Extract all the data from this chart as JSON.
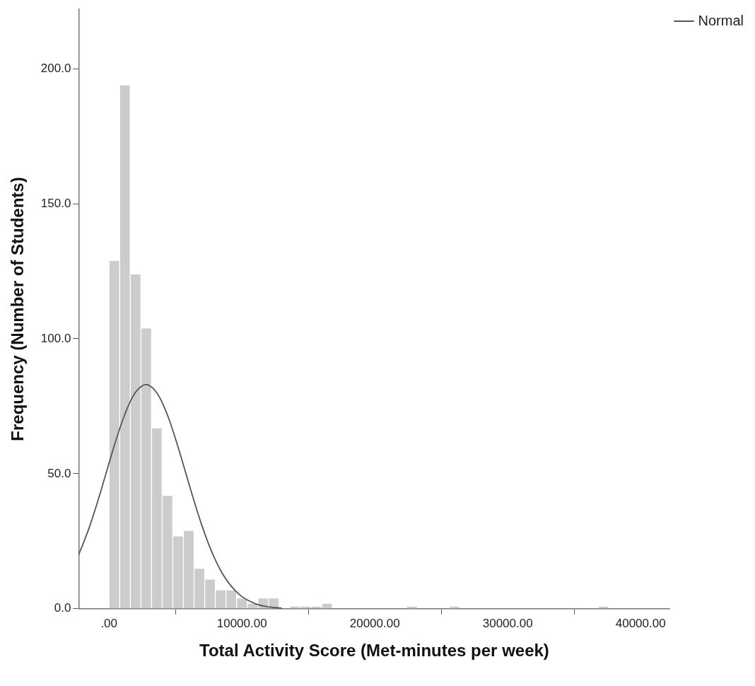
{
  "chart_data": {
    "type": "histogram",
    "xlabel": "Total Activity Score (Met-minutes per week)",
    "ylabel": "Frequency (Number of Students)",
    "bins": [
      0,
      800,
      1600,
      2400,
      3200,
      4000,
      4800,
      5600,
      6400,
      7200,
      8000,
      8800,
      9600,
      10400,
      11200,
      12000,
      12800,
      13600,
      14400,
      15200,
      16000,
      16800,
      17600,
      18400,
      19200,
      20000,
      20800,
      21600,
      22400,
      23200,
      24000,
      24800,
      25600,
      26400,
      27200,
      28000,
      28800,
      29600,
      30400,
      31200,
      32000,
      32800,
      33600,
      34400,
      35200,
      36000,
      36800,
      37600
    ],
    "series": [
      {
        "type": "histogram",
        "color": "#cccccc",
        "values": [
          129,
          194,
          124,
          104,
          67,
          42,
          27,
          29,
          15,
          11,
          7,
          7,
          4,
          2,
          4,
          4,
          0,
          1,
          1,
          1,
          2,
          0,
          0,
          0,
          0,
          0,
          0,
          0,
          1,
          0,
          0,
          0,
          1,
          0,
          0,
          0,
          0,
          0,
          0,
          0,
          0,
          0,
          0,
          0,
          0,
          0,
          1
        ]
      },
      {
        "type": "line",
        "name": "Normal",
        "color": "#555555",
        "x": [
          -2280,
          -1500,
          -1000,
          -500,
          0,
          500,
          1000,
          1500,
          2000,
          2500,
          2780,
          3000,
          3500,
          4000,
          4500,
          5000,
          5500,
          6000,
          6500,
          7000,
          7500,
          8000,
          8500,
          9000,
          9500,
          10000,
          11000,
          12000,
          13000
        ],
        "values": [
          20,
          29.9,
          37.4,
          45.5,
          53.9,
          62.1,
          69.5,
          75.7,
          80.2,
          82.6,
          83,
          82.8,
          80.6,
          76.4,
          70.4,
          63,
          54.9,
          46.5,
          38.3,
          30.7,
          23.9,
          18.1,
          13.3,
          9.6,
          6.7,
          4.5,
          1.9,
          0.7,
          0.2
        ]
      }
    ],
    "xlim": [
      -2280,
      42200
    ],
    "ylim": [
      0,
      222
    ],
    "xticks": [
      {
        "value": 0,
        "label": ".00"
      },
      {
        "value": 10000,
        "label": "10000.00"
      },
      {
        "value": 20000,
        "label": "20000.00"
      },
      {
        "value": 30000,
        "label": "30000.00"
      },
      {
        "value": 40000,
        "label": "40000.00"
      }
    ],
    "yticks": [
      {
        "value": 0,
        "label": "0.0"
      },
      {
        "value": 50,
        "label": "50.0"
      },
      {
        "value": 100,
        "label": "100.0"
      },
      {
        "value": 150,
        "label": "150.0"
      },
      {
        "value": 200,
        "label": "200.0"
      }
    ],
    "grid": false,
    "legend": "top right",
    "marker": "none",
    "line_style": "solid"
  }
}
